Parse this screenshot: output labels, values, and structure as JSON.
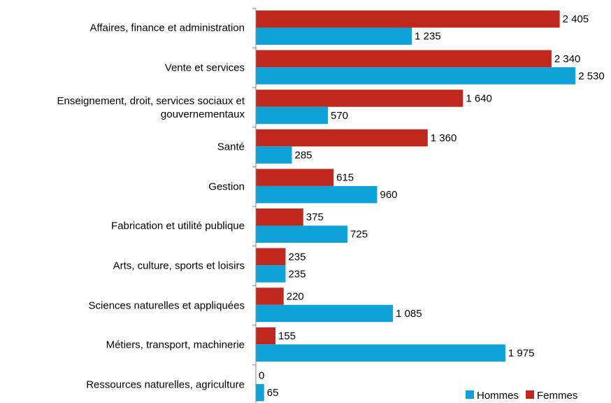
{
  "chart_data": {
    "type": "bar",
    "orientation": "horizontal",
    "categories": [
      "Affaires, finance et administration",
      "Vente et services",
      "Enseignement, droit, services sociaux et gouvernementaux",
      "Santé",
      "Gestion",
      "Fabrication et utilité publique",
      "Arts, culture, sports et loisirs",
      "Sciences naturelles et appliquées",
      "Métiers, transport, machinerie",
      "Ressources naturelles, agriculture"
    ],
    "series": [
      {
        "name": "Hommes",
        "color": "#0ea2d8",
        "values": [
          1235,
          2530,
          570,
          285,
          960,
          725,
          235,
          1085,
          1975,
          65
        ],
        "value_labels": [
          "1 235",
          "2 530",
          "570",
          "285",
          "960",
          "725",
          "235",
          "1 085",
          "1 975",
          "65"
        ]
      },
      {
        "name": "Femmes",
        "color": "#c0281d",
        "values": [
          2405,
          2340,
          1640,
          1360,
          615,
          375,
          235,
          220,
          155,
          0
        ],
        "value_labels": [
          "2 405",
          "2 340",
          "1 640",
          "1 360",
          "615",
          "375",
          "235",
          "220",
          "155",
          "0"
        ]
      }
    ],
    "xlim": [
      0,
      2800
    ],
    "legend": "bottom-right"
  }
}
